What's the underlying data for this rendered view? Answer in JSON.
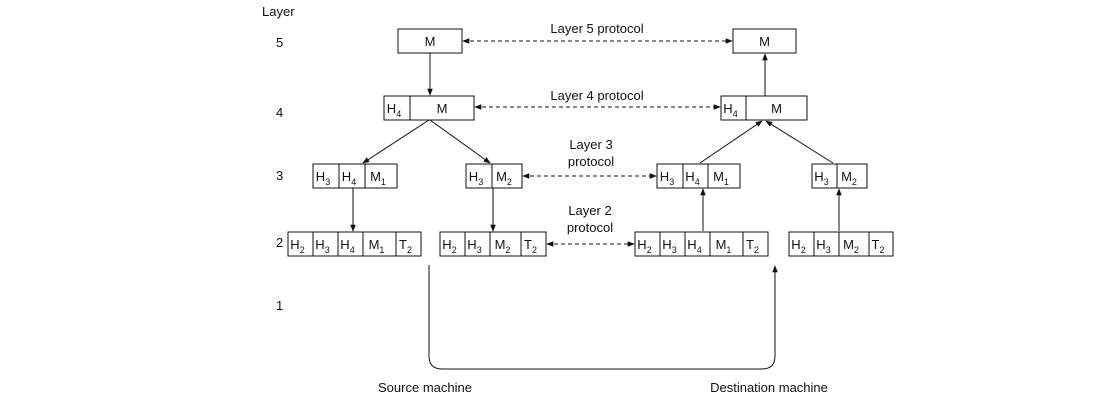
{
  "colors": {
    "ink": "#111111",
    "background": "#ffffff"
  },
  "axis": {
    "title": "Layer",
    "levels": [
      "5",
      "4",
      "3",
      "2",
      "1"
    ]
  },
  "protocols": {
    "layer5": "Layer 5 protocol",
    "layer4": "Layer 4 protocol",
    "layer3": [
      "Layer 3",
      "protocol"
    ],
    "layer2": [
      "Layer 2",
      "protocol"
    ]
  },
  "machines": {
    "source": "Source machine",
    "destination": "Destination machine"
  },
  "packets": {
    "src_l5": [
      {
        "t": "M"
      }
    ],
    "src_l4": [
      {
        "t": "H",
        "s": "4"
      },
      {
        "t": "M"
      }
    ],
    "src_l3a": [
      {
        "t": "H",
        "s": "3"
      },
      {
        "t": "H",
        "s": "4"
      },
      {
        "t": "M",
        "s": "1"
      }
    ],
    "src_l3b": [
      {
        "t": "H",
        "s": "3"
      },
      {
        "t": "M",
        "s": "2"
      }
    ],
    "src_l2a": [
      {
        "t": "H",
        "s": "2"
      },
      {
        "t": "H",
        "s": "3"
      },
      {
        "t": "H",
        "s": "4"
      },
      {
        "t": "M",
        "s": "1"
      },
      {
        "t": "T",
        "s": "2"
      }
    ],
    "src_l2b": [
      {
        "t": "H",
        "s": "2"
      },
      {
        "t": "H",
        "s": "3"
      },
      {
        "t": "M",
        "s": "2"
      },
      {
        "t": "T",
        "s": "2"
      }
    ],
    "dst_l5": [
      {
        "t": "M"
      }
    ],
    "dst_l4": [
      {
        "t": "H",
        "s": "4"
      },
      {
        "t": "M"
      }
    ],
    "dst_l3a": [
      {
        "t": "H",
        "s": "3"
      },
      {
        "t": "H",
        "s": "4"
      },
      {
        "t": "M",
        "s": "1"
      }
    ],
    "dst_l3b": [
      {
        "t": "H",
        "s": "3"
      },
      {
        "t": "M",
        "s": "2"
      }
    ],
    "dst_l2a": [
      {
        "t": "H",
        "s": "2"
      },
      {
        "t": "H",
        "s": "3"
      },
      {
        "t": "H",
        "s": "4"
      },
      {
        "t": "M",
        "s": "1"
      },
      {
        "t": "T",
        "s": "2"
      }
    ],
    "dst_l2b": [
      {
        "t": "H",
        "s": "2"
      },
      {
        "t": "H",
        "s": "3"
      },
      {
        "t": "M",
        "s": "2"
      },
      {
        "t": "T",
        "s": "2"
      }
    ]
  }
}
